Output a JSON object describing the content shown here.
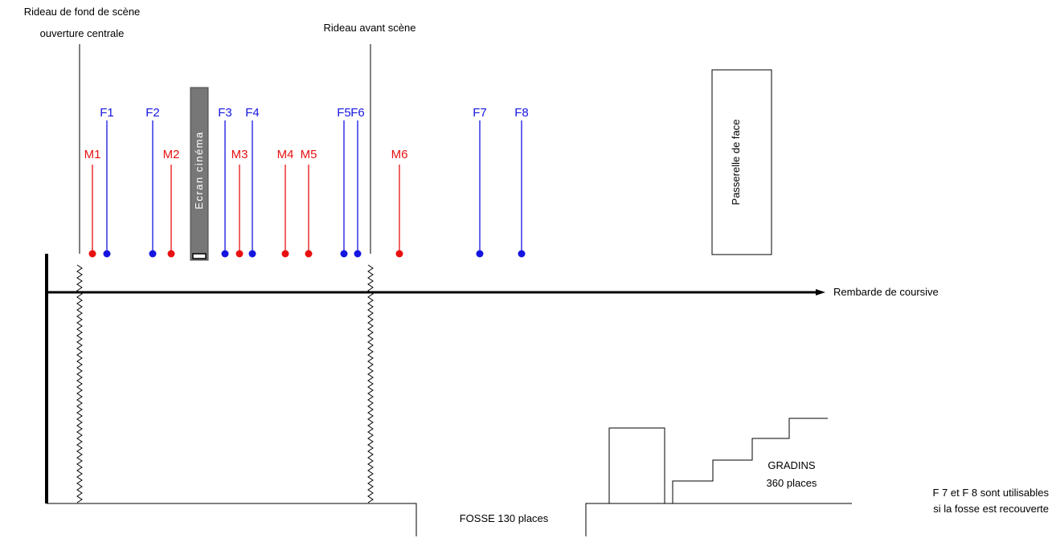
{
  "labels": {
    "rideau_fond_line1": "Rideau de fond de scène",
    "rideau_fond_line2": "ouverture centrale",
    "rideau_avant": "Rideau avant scène",
    "ecran": "Ecran cinéma",
    "passerelle": "Passerelle de face",
    "rambarde": "Rembarde de coursive",
    "gradins_line1": "GRADINS",
    "gradins_line2": "360 places",
    "fosse": "FOSSE 130 places",
    "note_line1": "F 7 et F 8 sont utilisables",
    "note_line2": "si la fosse est recouverte"
  },
  "colors": {
    "face": "#1515e0",
    "mid": "#e81010",
    "screen": "#777777",
    "line": "#000000"
  },
  "bars_face": [
    {
      "label": "F1"
    },
    {
      "label": "F2"
    },
    {
      "label": "F3"
    },
    {
      "label": "F4"
    },
    {
      "label": "F5"
    },
    {
      "label": "F6"
    },
    {
      "label": "F7"
    },
    {
      "label": "F8"
    }
  ],
  "bars_mid": [
    {
      "label": "M1"
    },
    {
      "label": "M2"
    },
    {
      "label": "M3"
    },
    {
      "label": "M4"
    },
    {
      "label": "M5"
    },
    {
      "label": "M6"
    }
  ]
}
